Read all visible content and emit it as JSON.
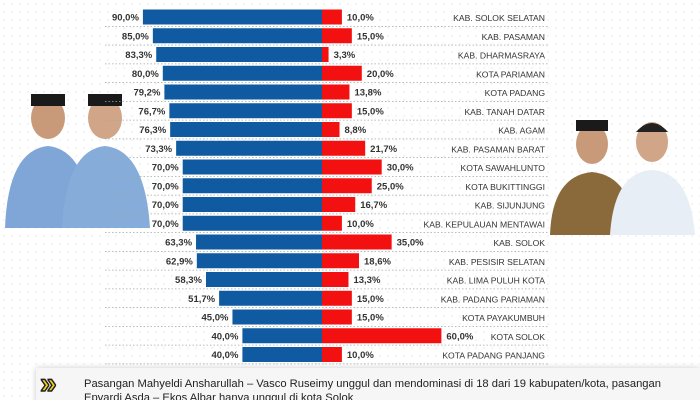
{
  "chart_data": {
    "type": "bar",
    "orientation": "horizontal-diverging",
    "categories": [
      "KAB. SOLOK SELATAN",
      "KAB. PASAMAN",
      "KAB. DHARMASRAYA",
      "KOTA PARIAMAN",
      "KOTA PADANG",
      "KAB. TANAH DATAR",
      "KAB. AGAM",
      "KAB. PASAMAN BARAT",
      "KOTA SAWAHLUNTO",
      "KOTA BUKITTINGGI",
      "KAB. SIJUNJUNG",
      "KAB. KEPULAUAN MENTAWAI",
      "KAB. SOLOK",
      "KAB. PESISIR SELATAN",
      "KAB. LIMA PULUH KOTA",
      "KAB. PADANG PARIAMAN",
      "KOTA PAYAKUMBUH",
      "KOTA SOLOK",
      "KOTA PADANG PANJANG"
    ],
    "series": [
      {
        "color": "#0f5aa0",
        "values": [
          90.0,
          85.0,
          83.3,
          80.0,
          79.2,
          76.7,
          76.3,
          73.3,
          70.0,
          70.0,
          70.0,
          70.0,
          63.3,
          62.9,
          58.3,
          51.7,
          45.0,
          40.0,
          40.0
        ],
        "labels": [
          "90,0%",
          "85,0%",
          "83,3%",
          "80,0%",
          "79,2%",
          "76,7%",
          "76,3%",
          "73,3%",
          "70,0%",
          "70,0%",
          "70,0%",
          "70,0%",
          "63,3%",
          "62,9%",
          "58,3%",
          "51,7%",
          "45,0%",
          "40,0%",
          "40,0%"
        ]
      },
      {
        "color": "#f21010",
        "values": [
          10.0,
          15.0,
          3.3,
          20.0,
          13.8,
          15.0,
          8.8,
          21.7,
          30.0,
          25.0,
          16.7,
          10.0,
          35.0,
          18.6,
          13.3,
          15.0,
          15.0,
          60.0,
          10.0
        ],
        "labels": [
          "10,0%",
          "15,0%",
          "3,3%",
          "20,0%",
          "13,8%",
          "15,0%",
          "8,8%",
          "21,7%",
          "30,0%",
          "25,0%",
          "16,7%",
          "10,0%",
          "35,0%",
          "18,6%",
          "13,3%",
          "15,0%",
          "15,0%",
          "60,0%",
          "10,0%"
        ]
      }
    ],
    "grid": "dotted horizontal row separators",
    "legend": "none"
  },
  "footer": {
    "line1": "Pasangan Mahyeldi Ansharullah – Vasco Ruseimy unggul dan mendominasi di 18  dari 19 kabupaten/kota, pasangan",
    "line2": "Epyardi Asda – Ekos Albar hanya unggul di kota Solok",
    "icon": "double-chevron-right-icon",
    "icon_color": "#f2d21b"
  }
}
